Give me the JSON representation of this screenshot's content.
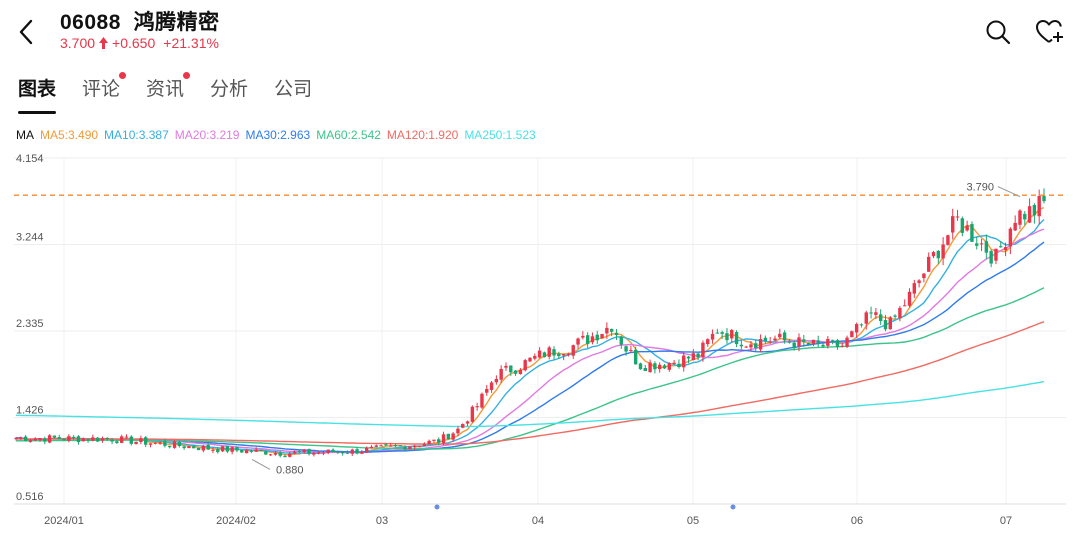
{
  "header": {
    "code": "06088",
    "name": "鸿腾精密",
    "price": "3.700",
    "change": "+0.650",
    "change_pct": "+21.31%",
    "up_color": "#e8364a"
  },
  "tabs": [
    {
      "label": "图表",
      "active": true,
      "dot": false
    },
    {
      "label": "评论",
      "active": false,
      "dot": true
    },
    {
      "label": "资讯",
      "active": false,
      "dot": true
    },
    {
      "label": "分析",
      "active": false,
      "dot": false
    },
    {
      "label": "公司",
      "active": false,
      "dot": false
    }
  ],
  "ma": {
    "prefix": "MA",
    "items": [
      {
        "label": "MA5:3.490",
        "color": "#f29b38"
      },
      {
        "label": "MA10:3.387",
        "color": "#35b0e0"
      },
      {
        "label": "MA20:3.219",
        "color": "#e07ae0"
      },
      {
        "label": "MA30:2.963",
        "color": "#2f7bea"
      },
      {
        "label": "MA60:2.542",
        "color": "#3cc48a"
      },
      {
        "label": "MA120:1.920",
        "color": "#f06a62"
      },
      {
        "label": "MA250:1.523",
        "color": "#48e2e4"
      }
    ]
  },
  "chart_data": {
    "type": "candlestick",
    "y_ticks": [
      "4.154",
      "3.244",
      "2.335",
      "1.426",
      "0.516"
    ],
    "ylim": [
      0.516,
      4.154
    ],
    "x_ticks": [
      "2024/01",
      "2024/02",
      "03",
      "04",
      "05",
      "06",
      "07"
    ],
    "last_price": 3.7,
    "high_label": "3.790",
    "low_label": "0.880",
    "up_color": "#e8364a",
    "down_color": "#19a56e",
    "grid": true
  },
  "icons": {
    "back": "chevron-left-icon",
    "search": "search-icon",
    "watch": "heart-plus-icon"
  }
}
